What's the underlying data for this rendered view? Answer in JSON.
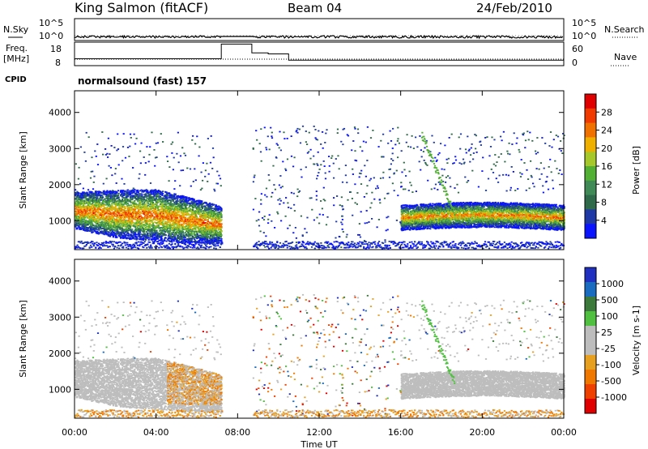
{
  "header": {
    "station": "King Salmon (fitACF)",
    "beam": "Beam 04",
    "date": "24/Feb/2010"
  },
  "status_panel": {
    "nsky_label": "N.Sky",
    "freq_label": "Freq.",
    "freq_unit": "[MHz]",
    "cpid_label": "CPID",
    "nsearch_label": "N.Search",
    "nave_label": "Nave",
    "nsky_ticks": [
      "10^5",
      "10^0"
    ],
    "nsearch_ticks": [
      "10^5",
      "10^0"
    ],
    "freq_ticks": [
      "18",
      "8"
    ],
    "nave_ticks": [
      "60",
      "0"
    ],
    "cpid_text": "normalsound (fast) 157"
  },
  "colors": {
    "power_scale": [
      "#0a14ff",
      "#1f3aa6",
      "#2f6a4a",
      "#3f8a56",
      "#52b034",
      "#a6c82a",
      "#f0b000",
      "#f07000",
      "#f03a00",
      "#e00000"
    ],
    "velocity_scale": [
      "#2030c0",
      "#1a6cc0",
      "#3c7a3c",
      "#50c040",
      "#bdbdbd",
      "#bdbdbd",
      "#e8a020",
      "#f07800",
      "#f04000",
      "#e00000"
    ],
    "axis": "#000000"
  },
  "chart_data": [
    {
      "type": "line",
      "title": "",
      "xlabel": "",
      "ylabel": "",
      "x_unit": "hours UT",
      "x_range": [
        0,
        24
      ],
      "series": [
        {
          "name": "N.Sky",
          "x": [
            0,
            4,
            8.8,
            12,
            16,
            20,
            24
          ],
          "y": [
            0,
            0,
            0,
            0,
            0,
            0,
            0
          ]
        },
        {
          "name": "Freq.",
          "x": [
            0,
            7.2,
            7.2,
            8.7,
            8.7,
            9.5,
            9.5,
            10.5,
            10.5,
            24
          ],
          "y": [
            10.5,
            10.5,
            18,
            18,
            13.5,
            13.5,
            13,
            13,
            9.8,
            9.8
          ]
        }
      ]
    },
    {
      "type": "heatmap",
      "title": "",
      "xlabel": "",
      "ylabel": "Slant Range [km]",
      "colorbar_label": "Power [dB]",
      "colorbar_ticks": [
        "4",
        "8",
        "12",
        "16",
        "20",
        "24",
        "28"
      ],
      "x_range": [
        0,
        24
      ],
      "ylim": [
        200,
        4600
      ],
      "y_ticks": [
        "1000",
        "2000",
        "3000",
        "4000"
      ],
      "x_ticks": [
        "00:00",
        "04:00",
        "08:00",
        "12:00",
        "16:00",
        "20:00",
        "00:00"
      ]
    },
    {
      "type": "heatmap",
      "title": "",
      "xlabel": "Time UT",
      "ylabel": "Slant Range [km]",
      "colorbar_label": "Velocity [m s-1]",
      "colorbar_ticks": [
        "1000",
        "500",
        "100",
        "25",
        "-25",
        "-100",
        "-500",
        "-1000"
      ],
      "x_range": [
        0,
        24
      ],
      "ylim": [
        200,
        4600
      ],
      "y_ticks": [
        "1000",
        "2000",
        "3000",
        "4000"
      ],
      "x_ticks": [
        "00:00",
        "04:00",
        "08:00",
        "12:00",
        "16:00",
        "20:00",
        "00:00"
      ]
    }
  ]
}
